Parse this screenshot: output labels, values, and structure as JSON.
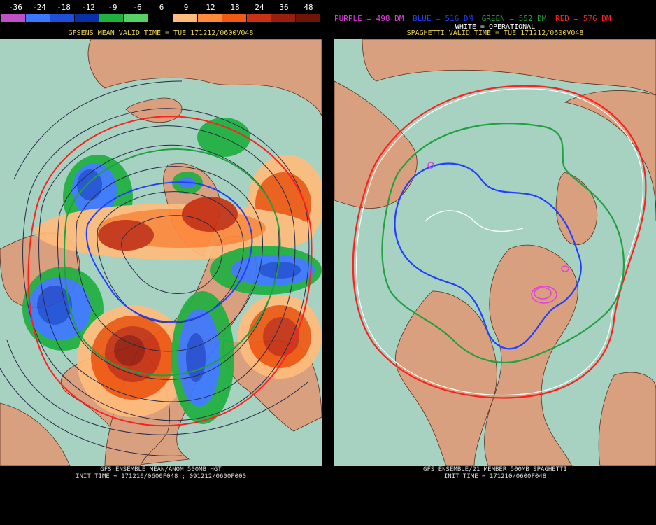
{
  "legend": {
    "labels": [
      "-36",
      "-24",
      "-18",
      "-12",
      "-9",
      "-6",
      "6",
      "9",
      "12",
      "18",
      "24",
      "36",
      "48"
    ],
    "colors": [
      "#c050c8",
      "#3a78ff",
      "#1f4fd8",
      "#0a2fa8",
      "#20b040",
      "#58d068",
      "#000000",
      "#ffbc7c",
      "#ff8a3c",
      "#f05a14",
      "#c83214",
      "#981e10",
      "#6e1408"
    ]
  },
  "left_panel": {
    "title": "GFSENS MEAN VALID TIME = TUE 171212/0600V048",
    "footer_line1": "GFS ENSEMBLE MEAN/ANOM 500MB HGT",
    "footer_line2": "INIT TIME = 171210/0600F048 ; 091212/0600F000"
  },
  "right_panel": {
    "key": [
      {
        "text": "PURPLE = 498 DM",
        "color": "#e040e0"
      },
      {
        "text": "BLUE = 516 DM",
        "color": "#2040ff"
      },
      {
        "text": "GREEN = 552 DM",
        "color": "#20a040"
      },
      {
        "text": "RED = 576 DM",
        "color": "#ff2020"
      }
    ],
    "subkey": "WHITE = OPERATIONAL",
    "title": "SPAGHETTI VALID TIME = TUE 171212/0600V048",
    "footer_line1": "GFS ENSEMBLE/21 MEMBER 500MB SPAGHETTI",
    "footer_line2": "INIT TIME = 171210/0600F048"
  },
  "colors": {
    "ocean": "#a7d1c0",
    "land": "#d9a080",
    "coast": "#5a3020",
    "contour": "#2a2a48"
  }
}
